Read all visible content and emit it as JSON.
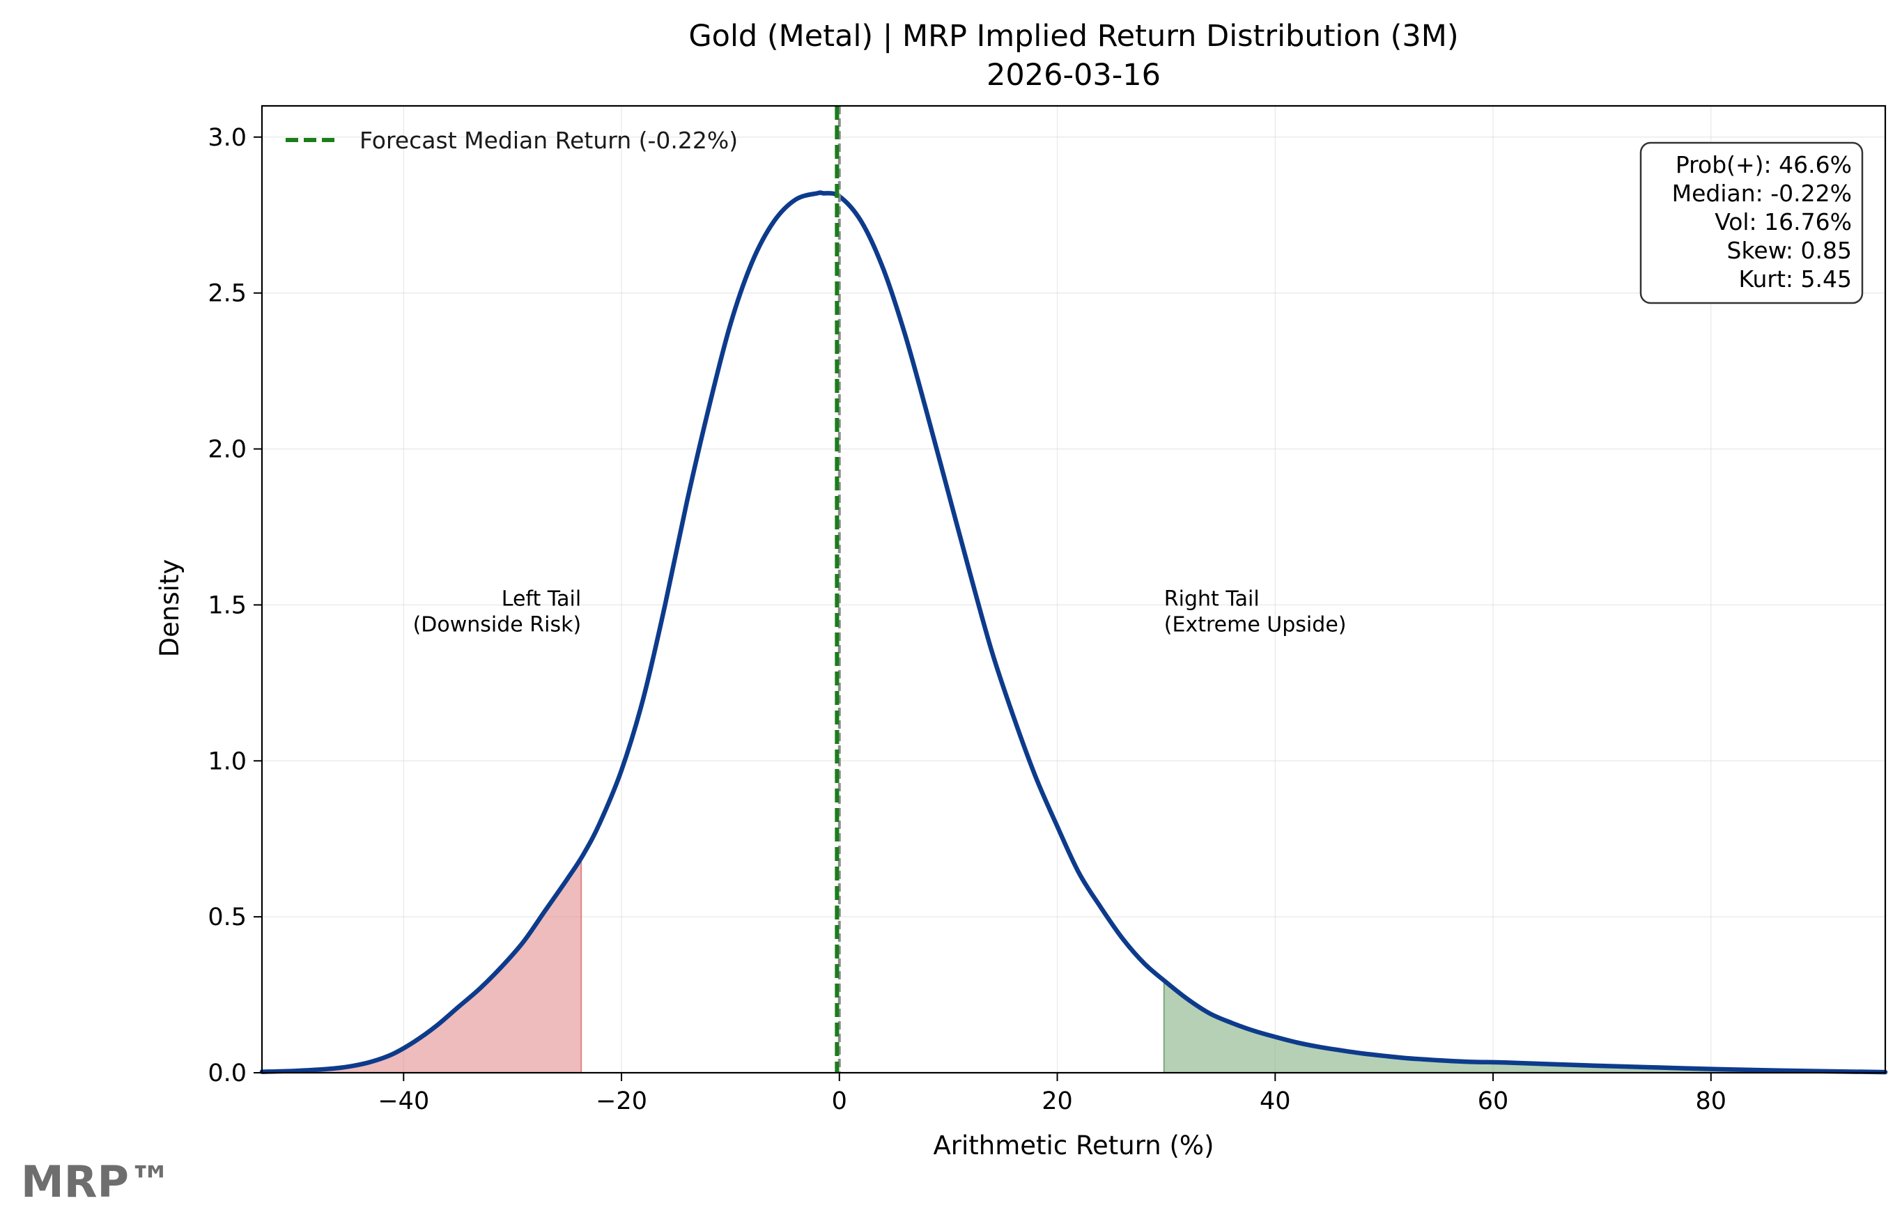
{
  "chart_data": {
    "type": "area",
    "title": "Gold (Metal) | MRP Implied Return Distribution (3M)",
    "subtitle": "2026-03-16",
    "xlabel": "Arithmetic Return (%)",
    "ylabel": "Density",
    "xlim": [
      -53,
      96
    ],
    "ylim": [
      0,
      3.1
    ],
    "x_ticks": [
      -40,
      -20,
      0,
      20,
      40,
      60,
      80
    ],
    "x_tick_labels": [
      "−40",
      "−20",
      "0",
      "20",
      "40",
      "60",
      "80"
    ],
    "y_ticks": [
      0.0,
      0.5,
      1.0,
      1.5,
      2.0,
      2.5,
      3.0
    ],
    "y_tick_labels": [
      "0.0",
      "0.5",
      "1.0",
      "1.5",
      "2.0",
      "2.5",
      "3.0"
    ],
    "grid": true,
    "series": [
      {
        "color": "#0d3b8c",
        "x": [
          -53,
          -50,
          -47,
          -45,
          -43,
          -41,
          -39,
          -37,
          -35,
          -33,
          -31,
          -29,
          -27,
          -25,
          -23.5,
          -22,
          -20,
          -18,
          -16,
          -14,
          -12,
          -10,
          -8,
          -6,
          -4,
          -2,
          -1.5,
          0,
          2,
          4,
          6,
          8,
          10,
          12,
          14,
          16,
          18,
          20,
          22,
          24,
          26,
          28,
          30,
          32,
          34,
          36,
          38,
          40,
          42,
          44,
          46,
          48,
          50,
          52,
          55,
          58,
          61,
          65,
          70,
          75,
          80,
          85,
          90,
          96
        ],
        "y": [
          0.003,
          0.006,
          0.012,
          0.02,
          0.035,
          0.06,
          0.1,
          0.15,
          0.21,
          0.27,
          0.34,
          0.42,
          0.52,
          0.62,
          0.7,
          0.8,
          0.97,
          1.2,
          1.5,
          1.83,
          2.13,
          2.4,
          2.6,
          2.73,
          2.8,
          2.82,
          2.82,
          2.81,
          2.73,
          2.58,
          2.37,
          2.12,
          1.86,
          1.6,
          1.35,
          1.14,
          0.95,
          0.79,
          0.64,
          0.53,
          0.43,
          0.35,
          0.29,
          0.235,
          0.19,
          0.16,
          0.135,
          0.115,
          0.097,
          0.083,
          0.072,
          0.062,
          0.054,
          0.047,
          0.04,
          0.035,
          0.033,
          0.028,
          0.022,
          0.017,
          0.012,
          0.008,
          0.005,
          0.002
        ]
      }
    ],
    "tails": [
      {
        "side": "left",
        "x_max": -23.7,
        "color": "#e08585"
      },
      {
        "side": "right",
        "x_min": 29.8,
        "color": "#79a979"
      }
    ],
    "median_line": {
      "x": -0.22,
      "color": "#1a7d1a",
      "legend": "Forecast Median Return (-0.22%)"
    },
    "zero_line": {
      "x": 0,
      "color": "#8c8c8c"
    },
    "annotations": [
      {
        "lines": [
          "Left Tail",
          "(Downside Risk)"
        ],
        "x": -23.7,
        "y": 1.46,
        "align": "end"
      },
      {
        "lines": [
          "Right Tail",
          "(Extreme Upside)"
        ],
        "x": 29.8,
        "y": 1.46,
        "align": "start"
      }
    ],
    "stats_box": [
      "Prob(+): 46.6%",
      "Median: -0.22%",
      "Vol: 16.76%",
      "Skew: 0.85",
      "Kurt: 5.45"
    ],
    "legend_position": "top-left",
    "stats_position": "top-right"
  },
  "brand": "MRP™"
}
